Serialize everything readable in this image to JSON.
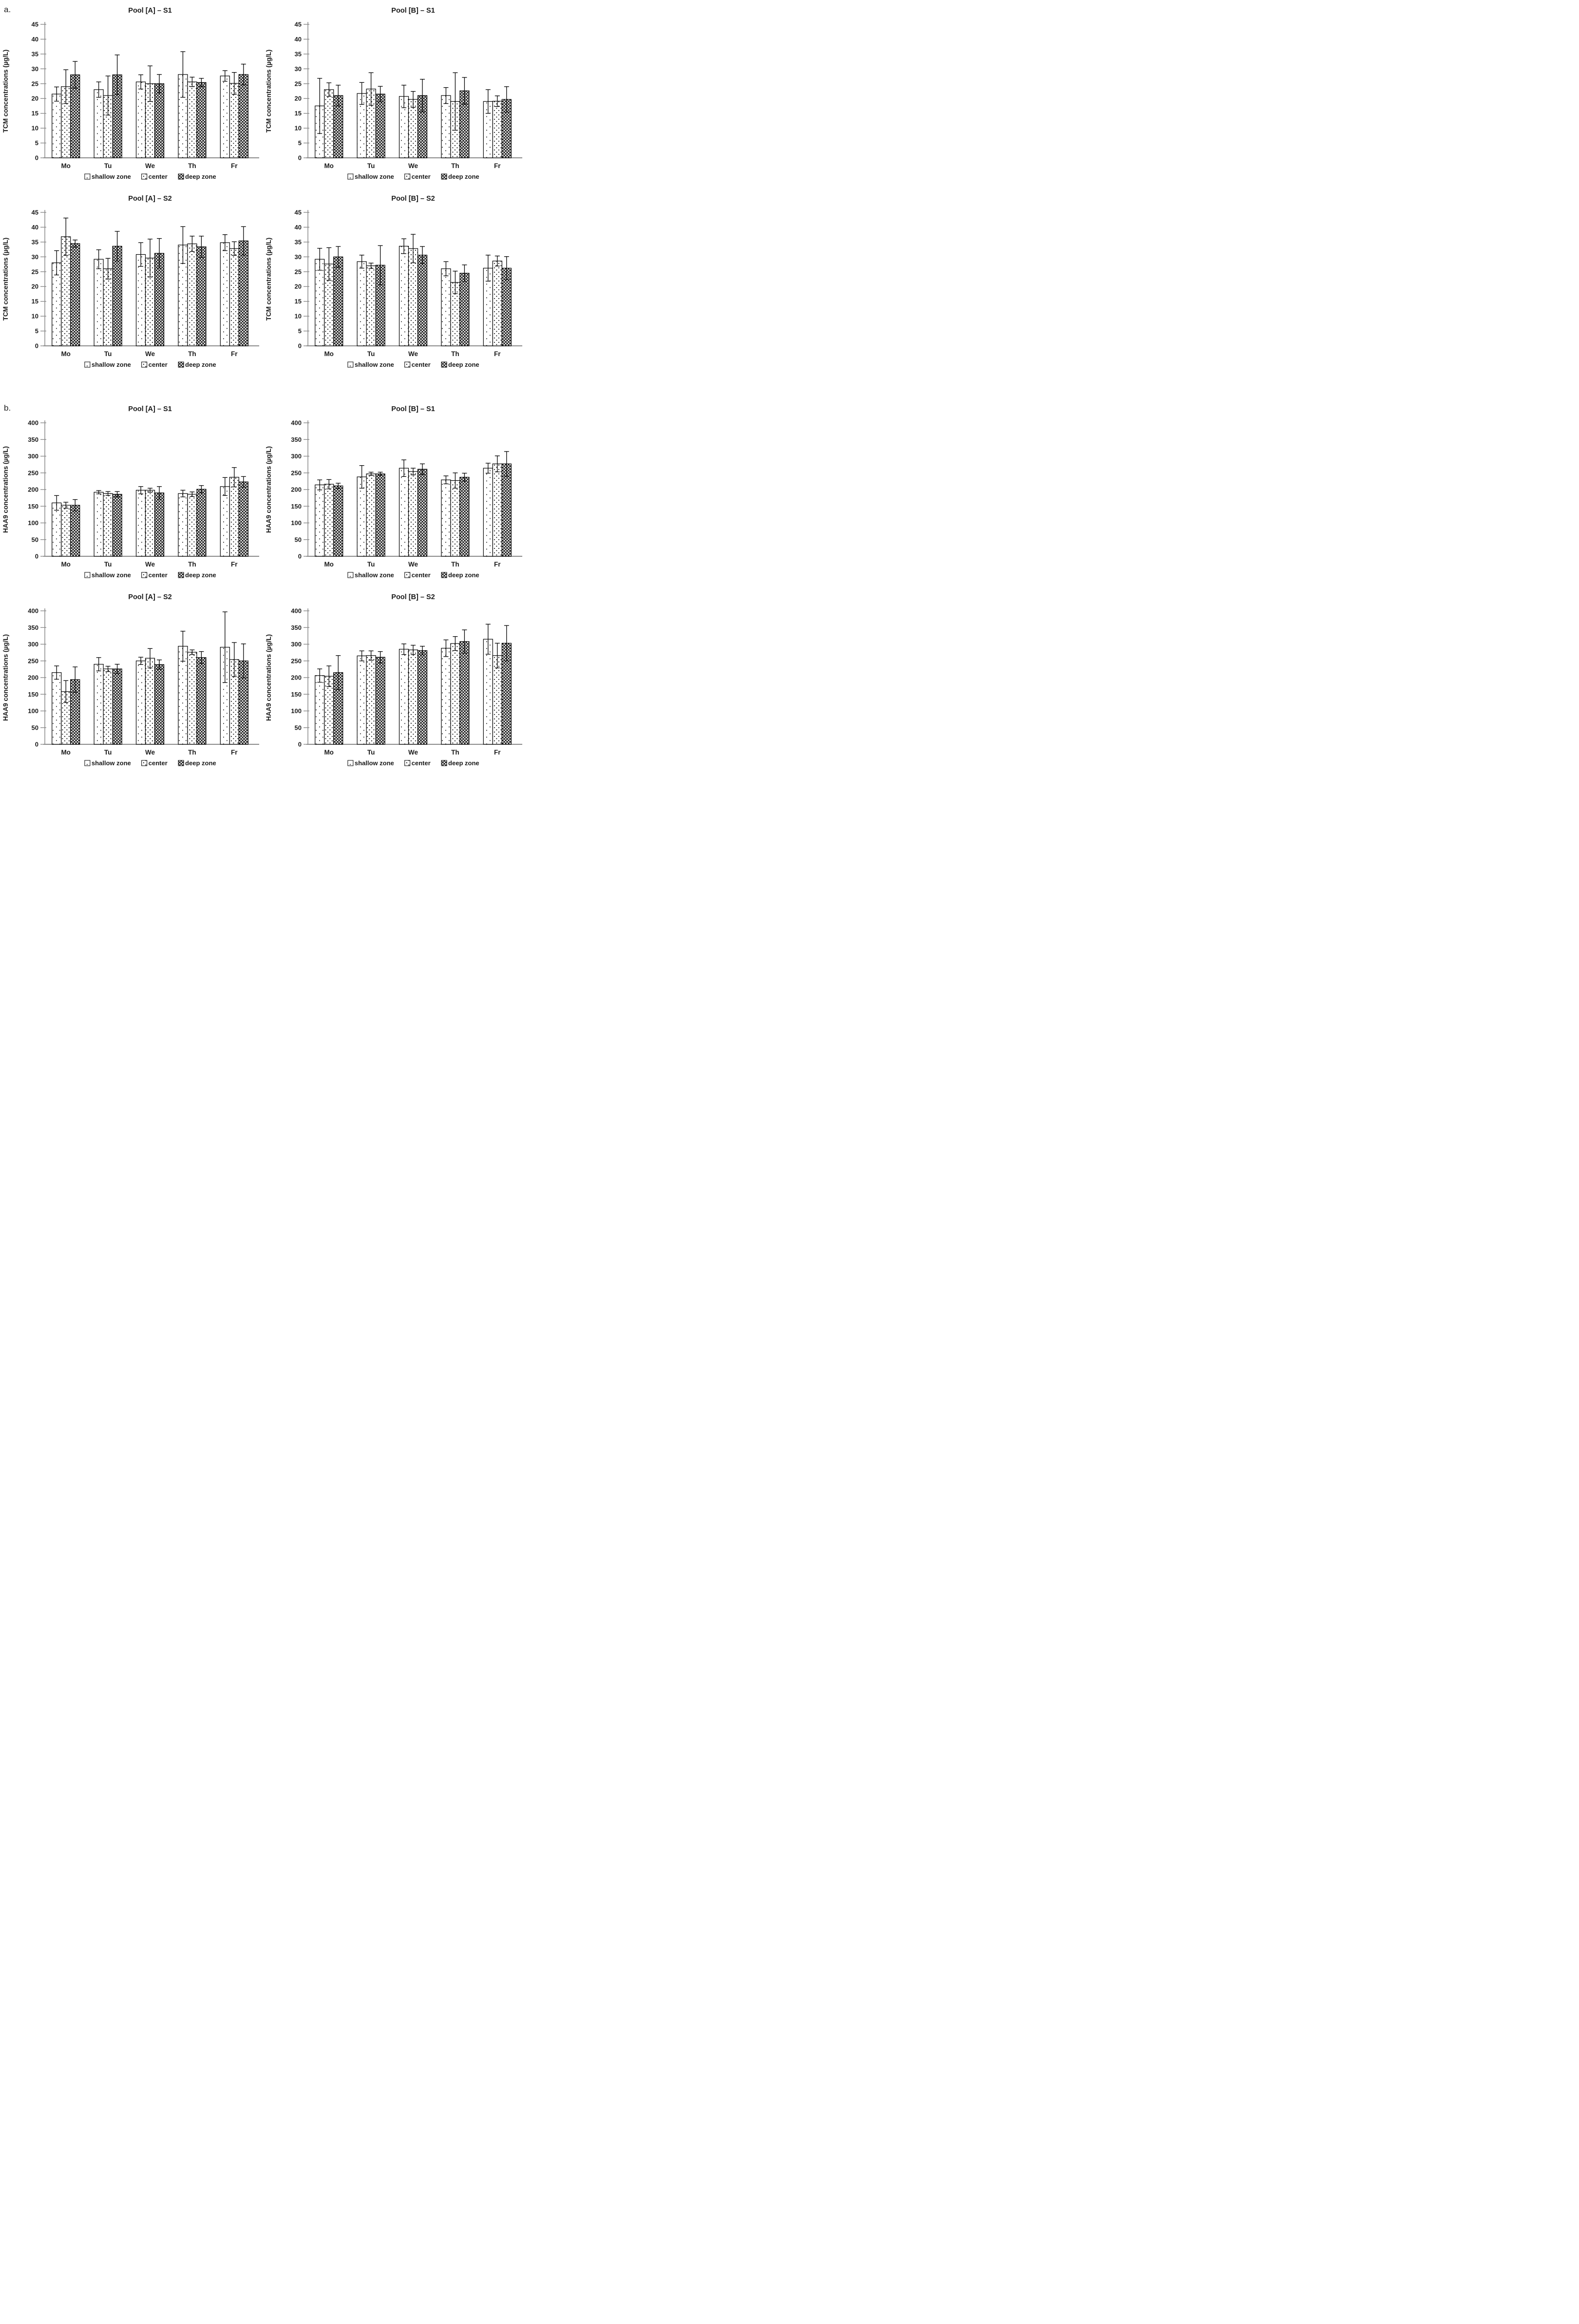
{
  "page": {
    "section_a_label": "a.",
    "section_b_label": "b."
  },
  "legend": {
    "items": [
      {
        "label": "shallow zone",
        "pattern": "shallow"
      },
      {
        "label": "center",
        "pattern": "center"
      },
      {
        "label": "deep zone",
        "pattern": "deep"
      }
    ]
  },
  "axis_style": {
    "axis_color": "#8a8a8a",
    "bar_stroke": "#000000",
    "text_color": "#1a1a1a"
  },
  "chart_data": [
    {
      "type": "bar",
      "section": "a",
      "title": "Pool [A] – S1",
      "ylabel": "TCM concentrations (µg/L)",
      "ylim": [
        0,
        45
      ],
      "ystep": 5,
      "grid": false,
      "legend_position": "bottom",
      "categories": [
        "Mo",
        "Tu",
        "We",
        "Th",
        "Fr"
      ],
      "series": [
        {
          "name": "shallow zone",
          "pattern": "shallow",
          "values": [
            21.5,
            23.0,
            25.6,
            28.1,
            27.6
          ],
          "errors": [
            2.4,
            2.6,
            2.4,
            7.7,
            1.8
          ]
        },
        {
          "name": "center",
          "pattern": "center",
          "values": [
            24.0,
            21.0,
            25.0,
            25.6,
            25.1
          ],
          "errors": [
            5.7,
            6.6,
            6.0,
            1.6,
            3.7
          ]
        },
        {
          "name": "deep zone",
          "pattern": "deep",
          "values": [
            28.0,
            28.0,
            25.0,
            25.4,
            28.1
          ],
          "errors": [
            4.5,
            6.7,
            3.1,
            1.4,
            3.5
          ]
        }
      ]
    },
    {
      "type": "bar",
      "section": "a",
      "title": "Pool [B] – S1",
      "ylabel": "TCM concentrations (µg/L)",
      "ylim": [
        0,
        45
      ],
      "ystep": 5,
      "grid": false,
      "legend_position": "bottom",
      "categories": [
        "Mo",
        "Tu",
        "We",
        "Th",
        "Fr"
      ],
      "series": [
        {
          "name": "shallow zone",
          "pattern": "shallow",
          "values": [
            17.5,
            21.7,
            20.7,
            21.0,
            19.0
          ],
          "errors": [
            9.3,
            3.7,
            3.8,
            2.7,
            4.0
          ]
        },
        {
          "name": "center",
          "pattern": "center",
          "values": [
            23.0,
            23.2,
            19.7,
            19.0,
            19.1
          ],
          "errors": [
            2.3,
            5.5,
            2.7,
            9.7,
            1.8
          ]
        },
        {
          "name": "deep zone",
          "pattern": "deep",
          "values": [
            21.0,
            21.5,
            21.0,
            22.6,
            19.7
          ],
          "errors": [
            3.5,
            2.6,
            5.5,
            4.5,
            4.3
          ]
        }
      ]
    },
    {
      "type": "bar",
      "section": "a",
      "title": "Pool [A] – S2",
      "ylabel": "TCM concentrations (µg/L)",
      "ylim": [
        0,
        45
      ],
      "ystep": 5,
      "grid": false,
      "legend_position": "bottom",
      "categories": [
        "Mo",
        "Tu",
        "We",
        "Th",
        "Fr"
      ],
      "series": [
        {
          "name": "shallow zone",
          "pattern": "shallow",
          "values": [
            28.0,
            29.2,
            30.8,
            34.0,
            34.8
          ],
          "errors": [
            4.1,
            3.2,
            4.0,
            6.2,
            2.7
          ]
        },
        {
          "name": "center",
          "pattern": "center",
          "values": [
            36.8,
            26.0,
            29.6,
            34.4,
            32.8
          ],
          "errors": [
            6.3,
            3.5,
            6.4,
            2.6,
            2.3
          ]
        },
        {
          "name": "deep zone",
          "pattern": "deep",
          "values": [
            34.5,
            33.6,
            31.2,
            33.4,
            35.4
          ],
          "errors": [
            1.2,
            5.0,
            5.0,
            3.6,
            4.8
          ]
        }
      ]
    },
    {
      "type": "bar",
      "section": "a",
      "title": "Pool [B] – S2",
      "ylabel": "TCM concentrations (µg/L)",
      "ylim": [
        0,
        45
      ],
      "ystep": 5,
      "grid": false,
      "legend_position": "bottom",
      "categories": [
        "Mo",
        "Tu",
        "We",
        "Th",
        "Fr"
      ],
      "series": [
        {
          "name": "shallow zone",
          "pattern": "shallow",
          "values": [
            29.2,
            28.4,
            33.6,
            26.0,
            26.2
          ],
          "errors": [
            3.7,
            2.2,
            2.5,
            2.4,
            4.4
          ]
        },
        {
          "name": "center",
          "pattern": "center",
          "values": [
            27.6,
            27.0,
            32.8,
            21.4,
            28.6
          ],
          "errors": [
            5.5,
            0.9,
            4.8,
            3.8,
            1.7
          ]
        },
        {
          "name": "deep zone",
          "pattern": "deep",
          "values": [
            30.0,
            27.2,
            30.6,
            24.5,
            26.2
          ],
          "errors": [
            3.5,
            6.6,
            2.9,
            2.8,
            3.9
          ]
        }
      ]
    },
    {
      "type": "bar",
      "section": "b",
      "title": "Pool [A] – S1",
      "ylabel": "HAA9 concentrations (µg/L)",
      "ylim": [
        0,
        400
      ],
      "ystep": 50,
      "grid": false,
      "legend_position": "bottom",
      "categories": [
        "Mo",
        "Tu",
        "We",
        "Th",
        "Fr"
      ],
      "series": [
        {
          "name": "shallow zone",
          "pattern": "shallow",
          "values": [
            160,
            192,
            198,
            188,
            209
          ],
          "errors": [
            22,
            5,
            11,
            10,
            27
          ]
        },
        {
          "name": "center",
          "pattern": "center",
          "values": [
            153,
            188,
            198,
            186,
            237
          ],
          "errors": [
            9,
            6,
            6,
            7,
            29
          ]
        },
        {
          "name": "deep zone",
          "pattern": "deep",
          "values": [
            153,
            186,
            190,
            201,
            223
          ],
          "errors": [
            17,
            8,
            19,
            11,
            16
          ]
        }
      ]
    },
    {
      "type": "bar",
      "section": "b",
      "title": "Pool [B] – S1",
      "ylabel": "HAA9 concentrations (µg/L)",
      "ylim": [
        0,
        400
      ],
      "ystep": 50,
      "grid": false,
      "legend_position": "bottom",
      "categories": [
        "Mo",
        "Tu",
        "We",
        "Th",
        "Fr"
      ],
      "series": [
        {
          "name": "shallow zone",
          "pattern": "shallow",
          "values": [
            214,
            238,
            264,
            229,
            264
          ],
          "errors": [
            15,
            34,
            25,
            12,
            15
          ]
        },
        {
          "name": "center",
          "pattern": "center",
          "values": [
            216,
            247,
            254,
            227,
            277
          ],
          "errors": [
            14,
            5,
            10,
            23,
            24
          ]
        },
        {
          "name": "deep zone",
          "pattern": "deep",
          "values": [
            211,
            247,
            261,
            237,
            277
          ],
          "errors": [
            8,
            5,
            16,
            12,
            37
          ]
        }
      ]
    },
    {
      "type": "bar",
      "section": "b",
      "title": "Pool [A] – S2",
      "ylabel": "HAA9 concentrations (µg/L)",
      "ylim": [
        0,
        400
      ],
      "ystep": 50,
      "grid": false,
      "legend_position": "bottom",
      "categories": [
        "Mo",
        "Tu",
        "We",
        "Th",
        "Fr"
      ],
      "series": [
        {
          "name": "shallow zone",
          "pattern": "shallow",
          "values": [
            215,
            240,
            250,
            294,
            291
          ],
          "errors": [
            20,
            20,
            11,
            45,
            106
          ]
        },
        {
          "name": "center",
          "pattern": "center",
          "values": [
            158,
            226,
            258,
            276,
            254
          ],
          "errors": [
            33,
            8,
            29,
            7,
            51
          ]
        },
        {
          "name": "deep zone",
          "pattern": "deep",
          "values": [
            194,
            226,
            239,
            260,
            250
          ],
          "errors": [
            38,
            14,
            14,
            18,
            51
          ]
        }
      ]
    },
    {
      "type": "bar",
      "section": "b",
      "title": "Pool [B] – S2",
      "ylabel": "HAA9 concentrations (µg/L)",
      "ylim": [
        0,
        400
      ],
      "ystep": 50,
      "grid": false,
      "legend_position": "bottom",
      "categories": [
        "Mo",
        "Tu",
        "We",
        "Th",
        "Fr"
      ],
      "series": [
        {
          "name": "shallow zone",
          "pattern": "shallow",
          "values": [
            206,
            265,
            285,
            288,
            315
          ],
          "errors": [
            20,
            15,
            16,
            25,
            45
          ]
        },
        {
          "name": "center",
          "pattern": "center",
          "values": [
            204,
            266,
            283,
            302,
            266
          ],
          "errors": [
            31,
            14,
            14,
            21,
            37
          ]
        },
        {
          "name": "deep zone",
          "pattern": "deep",
          "values": [
            215,
            261,
            281,
            308,
            303
          ],
          "errors": [
            51,
            17,
            13,
            35,
            53
          ]
        }
      ]
    }
  ]
}
